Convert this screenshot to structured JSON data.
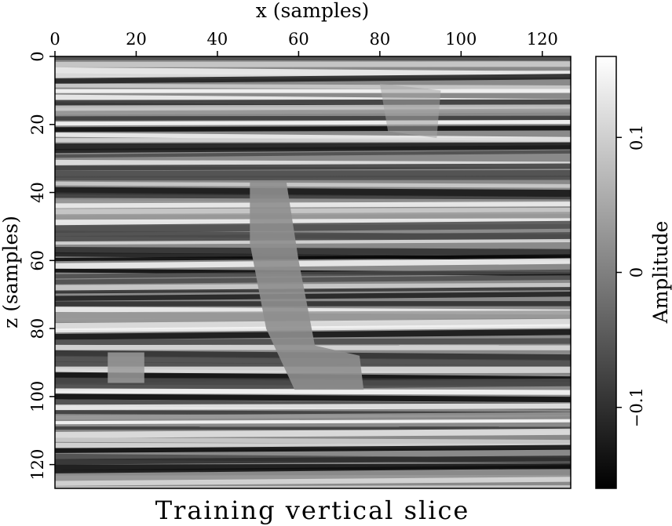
{
  "chart_data": {
    "type": "heatmap",
    "title": "Training vertical slice",
    "xlabel": "x (samples)",
    "ylabel": "z (samples)",
    "x_ticks": [
      0,
      20,
      40,
      60,
      80,
      100,
      120
    ],
    "y_ticks": [
      0,
      20,
      40,
      60,
      80,
      100,
      120
    ],
    "xlim": [
      0,
      127
    ],
    "ylim": [
      127,
      0
    ],
    "x_axis_position": "top",
    "colormap": "gray",
    "colorbar": {
      "label": "Amplitude",
      "ticks": [
        -0.1,
        0,
        0.1
      ],
      "tick_labels": [
        "−0.1",
        "0",
        "0.1"
      ],
      "range": [
        -0.16,
        0.16
      ],
      "placement": "right"
    },
    "description": "Seismic amplitude section with horizontal layered reflectors and a fault-like disturbed zone near x 50-75, z 40-100"
  }
}
